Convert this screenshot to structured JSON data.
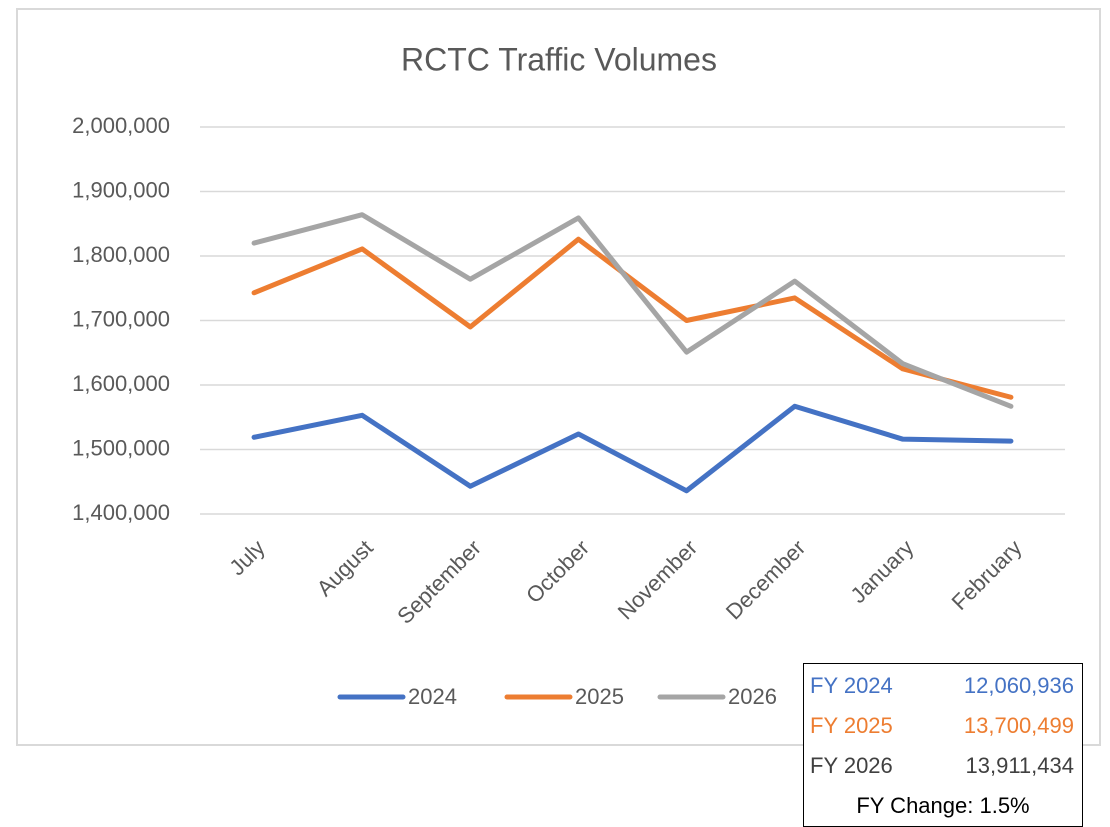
{
  "chart_data": {
    "type": "line",
    "title": "RCTC Traffic Volumes",
    "categories": [
      "July",
      "August",
      "September",
      "October",
      "November",
      "December",
      "January",
      "February"
    ],
    "series": [
      {
        "name": "2024",
        "color": "#4472c4",
        "values": [
          1519000,
          1553000,
          1443000,
          1524000,
          1436000,
          1567000,
          1516000,
          1513000
        ]
      },
      {
        "name": "2025",
        "color": "#ed7d31",
        "values": [
          1743000,
          1811000,
          1690000,
          1826000,
          1700000,
          1735000,
          1625000,
          1581000
        ]
      },
      {
        "name": "2026",
        "color": "#a5a5a5",
        "values": [
          1820000,
          1864000,
          1764000,
          1859000,
          1651000,
          1761000,
          1633000,
          1567000
        ]
      }
    ],
    "ylim": [
      1400000,
      2000000
    ],
    "yticks": [
      {
        "value": 1400000,
        "label": "1,400,000"
      },
      {
        "value": 1500000,
        "label": "1,500,000"
      },
      {
        "value": 1600000,
        "label": "1,600,000"
      },
      {
        "value": 1700000,
        "label": "1,700,000"
      },
      {
        "value": 1800000,
        "label": "1,800,000"
      },
      {
        "value": 1900000,
        "label": "1,900,000"
      },
      {
        "value": 2000000,
        "label": "2,000,000"
      }
    ],
    "grid": true,
    "legend": "bottom"
  },
  "summary": {
    "rows": [
      {
        "label": "FY 2024",
        "value": "12,060,936",
        "color": "#4472c4"
      },
      {
        "label": "FY 2025",
        "value": "13,700,499",
        "color": "#ed7d31"
      },
      {
        "label": "FY 2026",
        "value": "13,911,434",
        "color": "#404040"
      }
    ],
    "note": "FY Change: 1.5%"
  }
}
